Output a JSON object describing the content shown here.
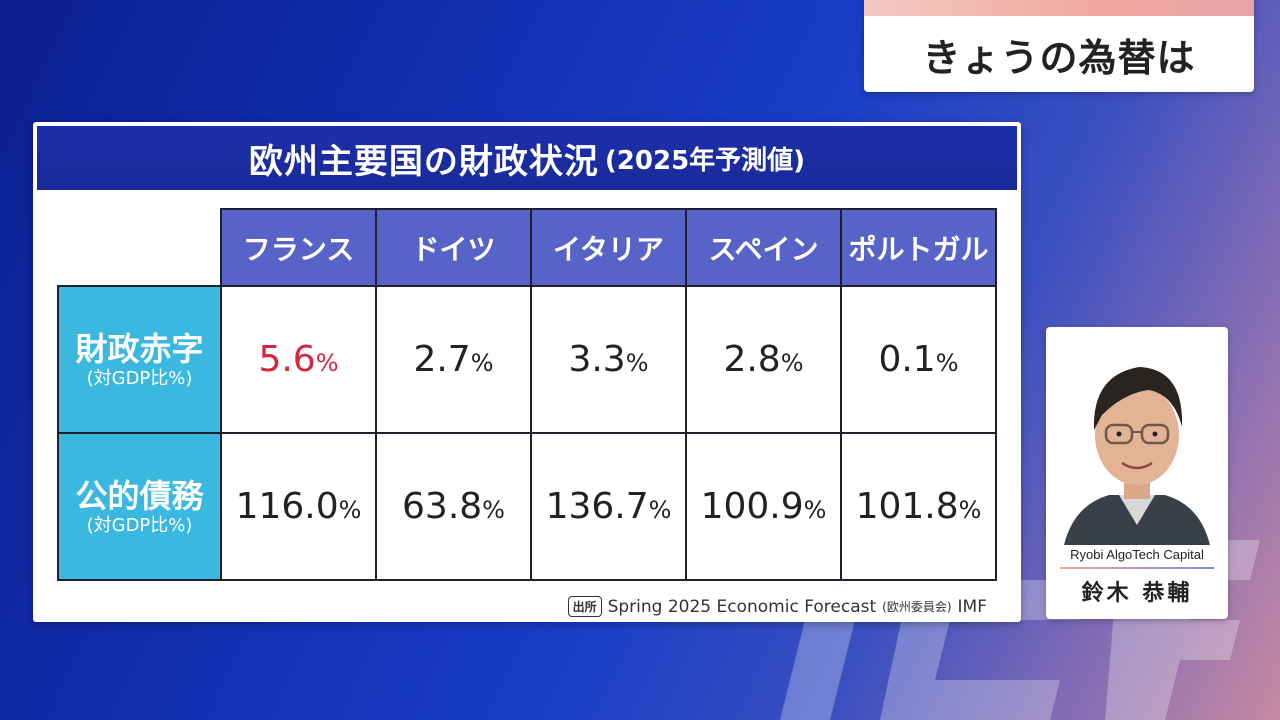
{
  "banner": {
    "title": "きょうの為替は"
  },
  "card": {
    "title_main": "欧州主要国の財政状況",
    "title_sub": "(2025年予測値)"
  },
  "table": {
    "columns": [
      "フランス",
      "ドイツ",
      "イタリア",
      "スペイン",
      "ポルトガル"
    ],
    "rows": [
      {
        "label": "財政赤字",
        "sublabel": "(対GDP比%)",
        "values": [
          "5.6",
          "2.7",
          "3.3",
          "2.8",
          "0.1"
        ],
        "unit": "%"
      },
      {
        "label": "公的債務",
        "sublabel": "(対GDP比%)",
        "values": [
          "116.0",
          "63.8",
          "136.7",
          "100.9",
          "101.8"
        ],
        "unit": "%"
      }
    ]
  },
  "source": {
    "tag": "出所",
    "text": "Spring 2025 Economic Forecast",
    "note": "(欧州委員会)",
    "extra": "IMF"
  },
  "commentator": {
    "organization": "Ryobi AlgoTech Capital",
    "name": "鈴木 恭輔"
  },
  "colors": {
    "highlight_value": "#d7263d",
    "column_header": "#5863c7",
    "row_header": "#3ab8e0",
    "title_bar": "#1b2fa8"
  }
}
